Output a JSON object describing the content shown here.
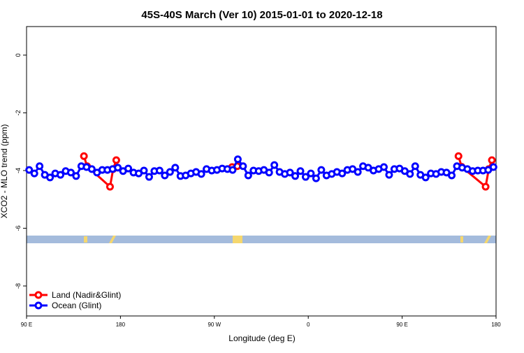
{
  "chart_data": {
    "type": "line",
    "title": "45S-40S March (Ver 10)   2015-01-01 to 2020-12-18",
    "x_label": "Longitude (deg E)",
    "y_label": "XCO2 - MLO trend (ppm)",
    "xlim": [
      90,
      540
    ],
    "ylim": [
      -9.04,
      0.99
    ],
    "xticks": [
      {
        "value": 90,
        "label": "90 E"
      },
      180,
      {
        "value": 270,
        "label": "90 W"
      },
      {
        "value": 360,
        "label": "0"
      },
      {
        "value": 450,
        "label": "90 E"
      },
      {
        "value": 540,
        "label": "180"
      }
    ],
    "yticks": [
      0,
      -2,
      -4,
      -6,
      -8
    ],
    "legend": "bottom-left",
    "series": [
      {
        "name": "Land (Nadir&Glint)",
        "color": "#ff0000",
        "x": [
          145,
          148,
          170,
          173,
          176,
          null,
          287,
          292,
          null,
          504,
          507,
          530,
          533,
          536
        ],
        "values": [
          -3.5,
          -3.85,
          -4.56,
          -3.95,
          -3.64,
          null,
          -3.88,
          -3.85,
          null,
          -3.5,
          -3.87,
          -4.56,
          -3.95,
          -3.64
        ]
      },
      {
        "name": "Ocean (Glint)",
        "color": "#0000ff",
        "x": [
          92.5,
          97.5,
          102.5,
          107.5,
          112.5,
          117.5,
          122.5,
          127.5,
          132.5,
          137.5,
          142.5,
          147.5,
          152.5,
          157.5,
          162.5,
          167.5,
          172.5,
          177.5,
          182.5,
          187.5,
          192.5,
          197.5,
          202.5,
          207.5,
          212.5,
          217.5,
          222.5,
          227.5,
          232.5,
          237.5,
          242.5,
          247.5,
          252.5,
          257.5,
          262.5,
          267.5,
          272.5,
          277.5,
          282.5,
          287.5,
          292.5,
          297.5,
          302.5,
          307.5,
          312.5,
          317.5,
          322.5,
          327.5,
          332.5,
          337.5,
          342.5,
          347.5,
          352.5,
          357.5,
          362.5,
          367.5,
          372.5,
          377.5,
          382.5,
          387.5,
          392.5,
          397.5,
          402.5,
          407.5,
          412.5,
          417.5,
          422.5,
          427.5,
          432.5,
          437.5,
          442.5,
          447.5,
          452.5,
          457.5,
          462.5,
          467.5,
          472.5,
          477.5,
          482.5,
          487.5,
          492.5,
          497.5,
          502.5,
          507.5,
          512.5,
          517.5,
          522.5,
          527.5,
          532.5,
          537.5
        ],
        "values": [
          -3.98,
          -4.1,
          -3.85,
          -4.15,
          -4.24,
          -4.1,
          -4.15,
          -4.02,
          -4.07,
          -4.19,
          -3.85,
          -3.88,
          -3.95,
          -4.07,
          -3.98,
          -3.98,
          -3.95,
          -3.9,
          -4.02,
          -3.93,
          -4.07,
          -4.1,
          -4.0,
          -4.22,
          -4.02,
          -4.0,
          -4.17,
          -4.05,
          -3.9,
          -4.19,
          -4.17,
          -4.1,
          -4.05,
          -4.12,
          -3.95,
          -4.0,
          -3.98,
          -3.93,
          -3.95,
          -3.98,
          -3.61,
          -3.85,
          -4.17,
          -4.0,
          -4.02,
          -3.98,
          -4.07,
          -3.81,
          -4.05,
          -4.12,
          -4.07,
          -4.19,
          -4.02,
          -4.22,
          -4.1,
          -4.27,
          -3.98,
          -4.17,
          -4.12,
          -4.05,
          -4.1,
          -3.98,
          -3.95,
          -4.05,
          -3.85,
          -3.9,
          -4.0,
          -3.95,
          -3.88,
          -4.15,
          -3.95,
          -3.93,
          -4.02,
          -4.12,
          -3.85,
          -4.15,
          -4.24,
          -4.1,
          -4.12,
          -4.05,
          -4.07,
          -4.17,
          -3.85,
          -3.9,
          -3.95,
          -4.02,
          -4.0,
          -4.0,
          -3.98,
          -3.88
        ]
      }
    ]
  }
}
